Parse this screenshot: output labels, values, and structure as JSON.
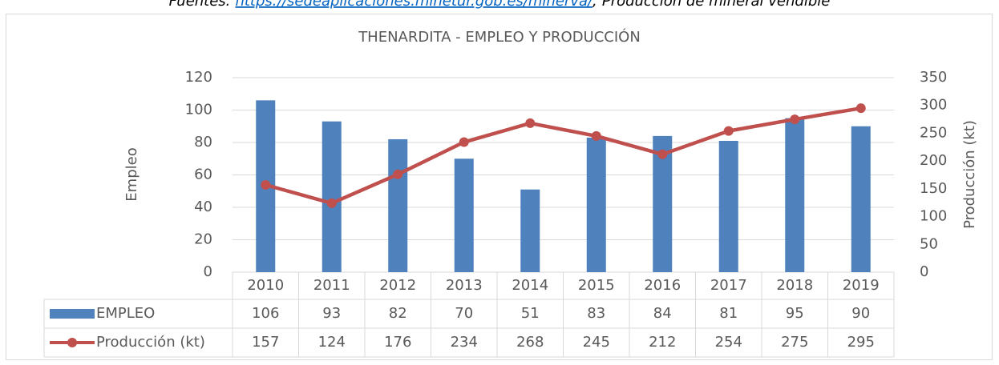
{
  "chart_data": {
    "type": "bar_line",
    "source": {
      "prefix": "Fuentes: ",
      "link": "https://sedeaplicaciones.minetur.gob.es/minerva/",
      "suffix": "; Producción de mineral vendible"
    },
    "title": "THENARDITA - EMPLEO Y PRODUCCIÓN",
    "ylabel": "Empleo",
    "y2label": "Producción (kt)",
    "categories": [
      "2010",
      "2011",
      "2012",
      "2013",
      "2014",
      "2015",
      "2016",
      "2017",
      "2018",
      "2019"
    ],
    "series": [
      {
        "name": "EMPLEO",
        "type": "bar",
        "color": "#4f81bd",
        "axis": "y",
        "values": [
          106,
          93,
          82,
          70,
          51,
          83,
          84,
          81,
          95,
          90
        ]
      },
      {
        "name": "Producción (kt)",
        "type": "line",
        "color": "#c0504d",
        "axis": "y2",
        "values": [
          157,
          124,
          176,
          234,
          268,
          245,
          212,
          254,
          275,
          295
        ]
      }
    ],
    "ylim": [
      0,
      120
    ],
    "yticks": [
      0,
      20,
      40,
      60,
      80,
      100,
      120
    ],
    "y2lim": [
      0,
      350
    ],
    "y2ticks": [
      0,
      50,
      100,
      150,
      200,
      250,
      300,
      350
    ],
    "grid": true
  }
}
